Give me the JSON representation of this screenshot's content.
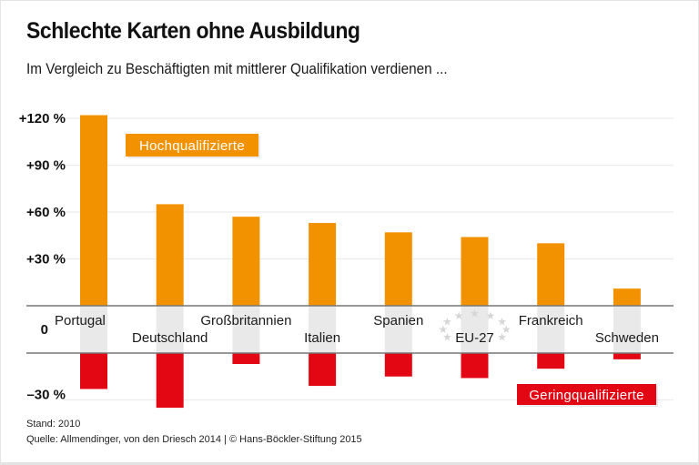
{
  "title": "Schlechte Karten ohne Ausbildung",
  "subtitle": "Im Vergleich zu Beschäftigten mit mittlerer Qualifikation verdienen ...",
  "footer": {
    "stand": "Stand: 2010",
    "source": "Quelle: Allmendinger, von den Driesch 2014 | © Hans-Böckler-Stiftung 2015"
  },
  "colors": {
    "high": "#f39200",
    "low": "#e30613",
    "band": "#e9e9e9",
    "grid": "#ececec",
    "axis": "#777777"
  },
  "chart_data": {
    "type": "bar",
    "title": "Schlechte Karten ohne Ausbildung",
    "subtitle": "Im Vergleich zu Beschäftigten mit mittlerer Qualifikation verdienen ...",
    "xlabel": "",
    "ylabel": "",
    "categories": [
      "Portugal",
      "Deutschland",
      "Großbritannien",
      "Italien",
      "Spanien",
      "EU-27",
      "Frankreich",
      "Schweden"
    ],
    "series": [
      {
        "name": "Hochqualifizierte",
        "color": "#f39200",
        "values": [
          122,
          65,
          57,
          53,
          47,
          44,
          40,
          11
        ]
      },
      {
        "name": "Geringqualifizierte",
        "color": "#e30613",
        "values": [
          -23,
          -35,
          -7,
          -21,
          -15,
          -16,
          -10,
          -4
        ]
      }
    ],
    "yticks": [
      {
        "value": 120,
        "label": "+120 %"
      },
      {
        "value": 90,
        "label": "+90 %"
      },
      {
        "value": 60,
        "label": "+60 %"
      },
      {
        "value": 30,
        "label": "+30 %"
      },
      {
        "value": 0,
        "label": "0"
      },
      {
        "value": -30,
        "label": "–30 %"
      }
    ],
    "ylim": [
      -35,
      122
    ],
    "grid": true,
    "legend": [
      {
        "label": "Hochqualifizierte",
        "placement": "top-left"
      },
      {
        "label": "Geringqualifizierte",
        "placement": "bottom-right"
      }
    ],
    "annotations": [
      "EU star ring around EU-27 label"
    ]
  }
}
